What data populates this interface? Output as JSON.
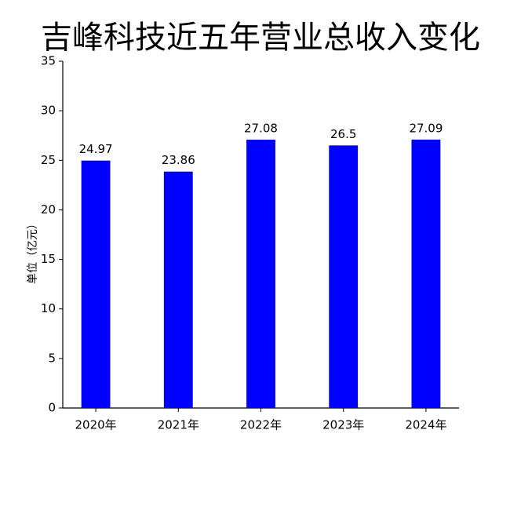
{
  "chart_data": {
    "type": "bar",
    "title": "吉峰科技近五年营业总收入变化",
    "y_label": "单位（亿元）",
    "categories": [
      "2020年",
      "2021年",
      "2022年",
      "2023年",
      "2024年"
    ],
    "values": [
      24.97,
      23.86,
      27.08,
      26.5,
      27.09
    ],
    "color": "#0000ff",
    "ylim": [
      0,
      35
    ],
    "yticks": [
      0,
      5,
      10,
      15,
      20,
      25,
      30,
      35
    ],
    "grid": false
  }
}
